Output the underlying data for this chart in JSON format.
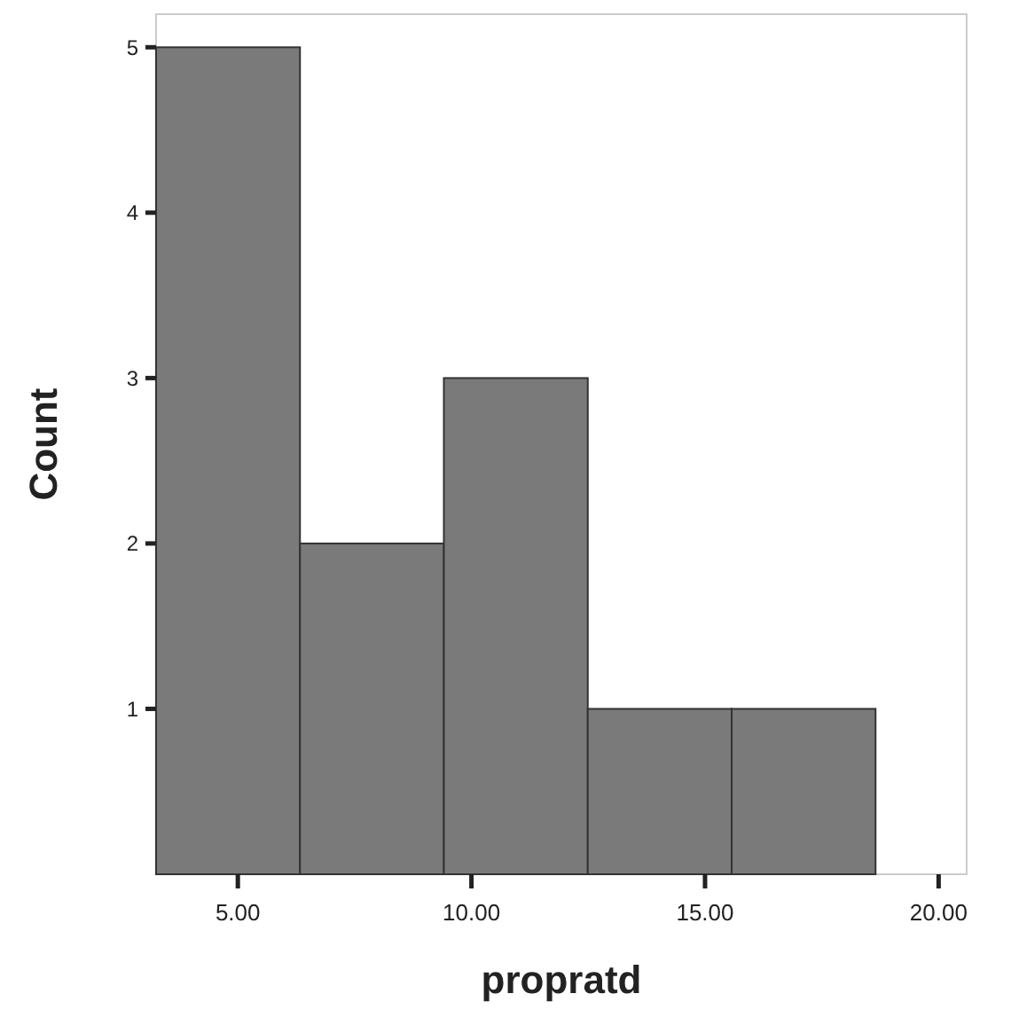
{
  "chart_data": {
    "type": "histogram",
    "xlabel": "propratd",
    "ylabel": "Count",
    "bins": [
      3.25,
      6.33,
      9.41,
      12.49,
      15.57,
      18.65
    ],
    "values": [
      5,
      2,
      3,
      1,
      1
    ],
    "color": "#7a7a7a",
    "xlim": [
      3.25,
      20.6
    ],
    "ylim": [
      0,
      5.2
    ],
    "xticks": [
      {
        "value": 5,
        "label": "5.00"
      },
      {
        "value": 10,
        "label": "10.00"
      },
      {
        "value": 15,
        "label": "15.00"
      },
      {
        "value": 20,
        "label": "20.00"
      }
    ],
    "yticks": [
      1,
      2,
      3,
      4,
      5
    ],
    "grid": false
  }
}
